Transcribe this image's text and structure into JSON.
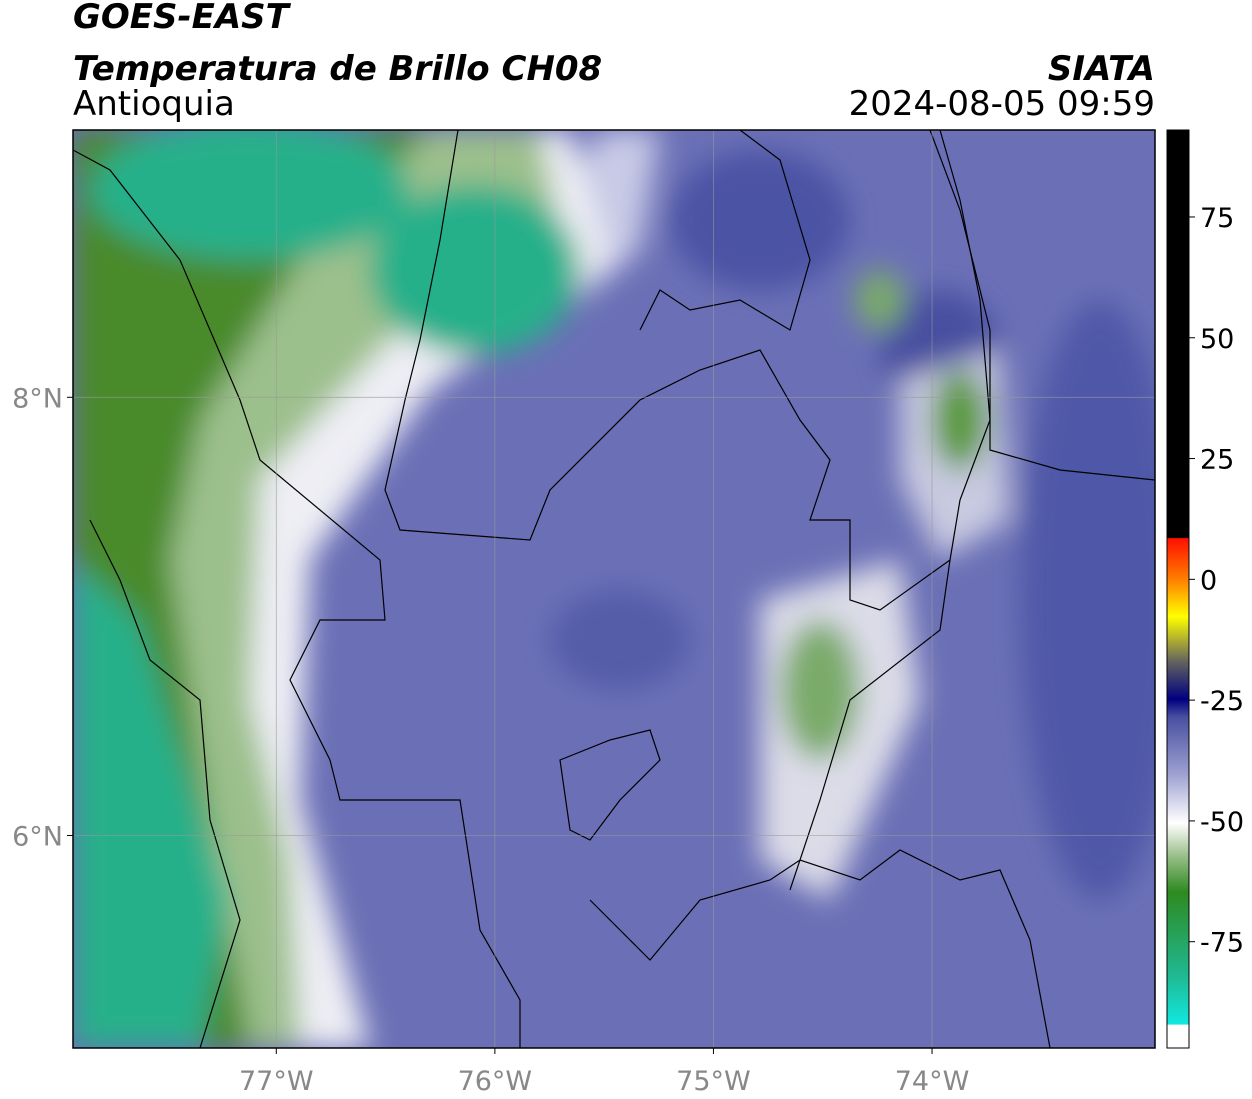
{
  "header": {
    "title": "GOES-EAST",
    "subtitle": "Temperatura de Brillo CH08",
    "region": "Antioquia",
    "source": "SIATA",
    "datetime": "2024-08-05 09:59"
  },
  "map": {
    "xlim": [
      -77.93,
      -72.98
    ],
    "ylim": [
      5.03,
      9.22
    ],
    "xticks": [
      {
        "value": -77,
        "label": "77°W"
      },
      {
        "value": -76,
        "label": "76°W"
      },
      {
        "value": -75,
        "label": "75°W"
      },
      {
        "value": -74,
        "label": "74°W"
      }
    ],
    "yticks": [
      {
        "value": 8,
        "label": "8°N"
      },
      {
        "value": 6,
        "label": "6°N"
      }
    ],
    "grid": true
  },
  "colorbar": {
    "clim": [
      -97,
      93
    ],
    "ticks": [
      75,
      50,
      25,
      0,
      -25,
      -50,
      -75
    ]
  }
}
